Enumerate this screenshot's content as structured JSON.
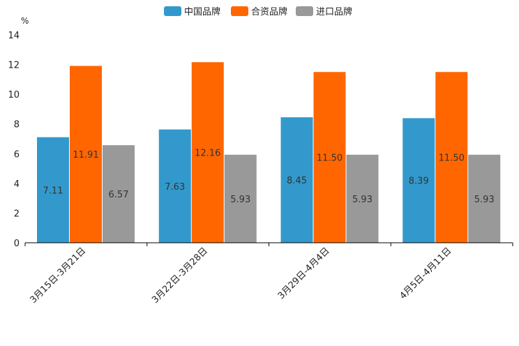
{
  "chart_data": {
    "type": "bar",
    "title": "",
    "xlabel": "",
    "ylabel": "%",
    "ylim": [
      0,
      14
    ],
    "yticks": [
      0,
      2,
      4,
      6,
      8,
      10,
      12,
      14
    ],
    "grid": false,
    "legend_position": "top-center",
    "categories": [
      "3月15日-3月21日",
      "3月22日-3月28日",
      "3月29日-4月4日",
      "4月5日-4月11日"
    ],
    "series": [
      {
        "name": "中国品牌",
        "color": "#3399CC",
        "values": [
          7.11,
          7.63,
          8.45,
          8.39
        ],
        "labels": [
          "7.11",
          "7.63",
          "8.45",
          "8.39"
        ]
      },
      {
        "name": "合资品牌",
        "color": "#FF6600",
        "values": [
          11.91,
          12.16,
          11.5,
          11.5
        ],
        "labels": [
          "11.91",
          "12.16",
          "11.50",
          "11.50"
        ]
      },
      {
        "name": "进口品牌",
        "color": "#999999",
        "values": [
          6.57,
          5.93,
          5.93,
          5.93
        ],
        "labels": [
          "6.57",
          "5.93",
          "5.93",
          "5.93"
        ]
      }
    ]
  }
}
